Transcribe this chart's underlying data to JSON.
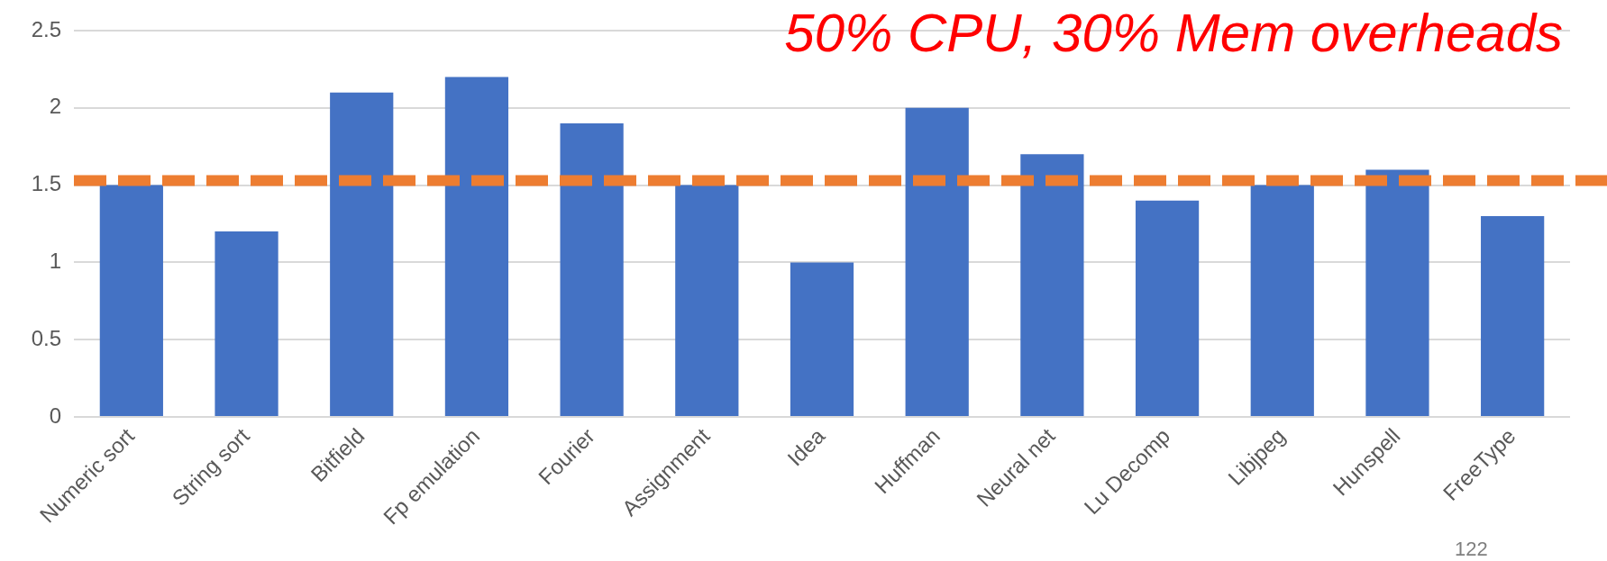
{
  "chart_data": {
    "type": "bar",
    "title": "50% CPU, 30% Mem overheads",
    "categories": [
      "Numeric sort",
      "String sort",
      "Bitfield",
      "Fp emulation",
      "Fourier",
      "Assignment",
      "Idea",
      "Huffman",
      "Neural net",
      "Lu Decomp",
      "Libjpeg",
      "Hunspell",
      "FreeType"
    ],
    "values": [
      1.5,
      1.2,
      2.1,
      2.2,
      1.9,
      1.5,
      1.0,
      2.0,
      1.7,
      1.4,
      1.5,
      1.6,
      1.3
    ],
    "color": "#4472c4",
    "ylim": [
      0,
      2.5
    ],
    "yticks": [
      0,
      0.5,
      1,
      1.5,
      2,
      2.5
    ],
    "grid": "y",
    "ref_lines": [
      {
        "axis": "y",
        "value": 1.53,
        "color": "#ed7d31",
        "line_style": "dashed"
      }
    ],
    "annotations": [
      "122"
    ]
  }
}
